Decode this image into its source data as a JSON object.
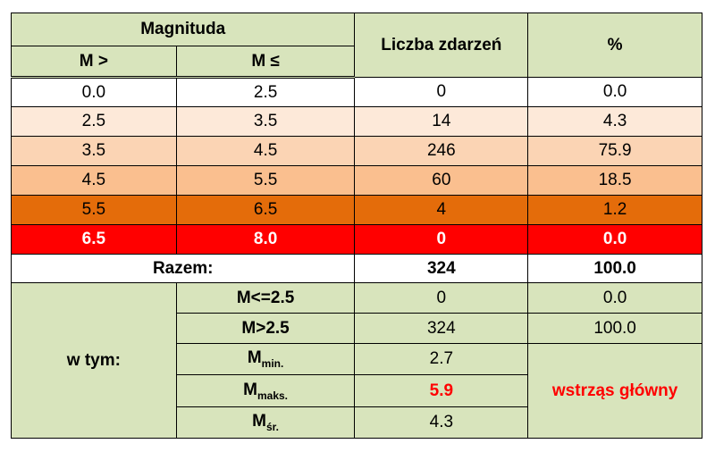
{
  "header": {
    "magnitude": "Magnituda",
    "m_gt": "M >",
    "m_le": "M ≤",
    "count": "Liczba zdarzeń",
    "percent": "%"
  },
  "rows": [
    [
      "0.0",
      "2.5",
      "0",
      "0.0"
    ],
    [
      "2.5",
      "3.5",
      "14",
      "4.3"
    ],
    [
      "3.5",
      "4.5",
      "246",
      "75.9"
    ],
    [
      "4.5",
      "5.5",
      "60",
      "18.5"
    ],
    [
      "5.5",
      "6.5",
      "4",
      "1.2"
    ],
    [
      "6.5",
      "8.0",
      "0",
      "0.0"
    ]
  ],
  "total": {
    "label": "Razem:",
    "count": "324",
    "percent": "100.0"
  },
  "subset": {
    "label": "w tym:",
    "rows": [
      {
        "label": "M<=2.5",
        "count": "0",
        "percent": "0.0"
      },
      {
        "label": "M>2.5",
        "count": "324",
        "percent": "100.0"
      },
      {
        "label": "M",
        "sub": "min.",
        "count": "2.7"
      },
      {
        "label": "M",
        "sub": "maks.",
        "count": "5.9"
      },
      {
        "label": "M",
        "sub": "śr.",
        "count": "4.3"
      }
    ],
    "note": "wstrząs główny"
  }
}
